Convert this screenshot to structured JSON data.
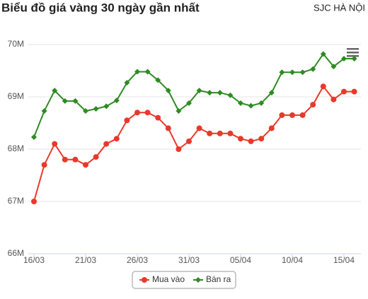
{
  "chart_data": {
    "type": "line",
    "title": "Biểu đồ giá vàng 30 ngày gần nhất",
    "subtitle": "SJC HÀ NỘI",
    "categories": [
      "16/03",
      null,
      null,
      null,
      null,
      "21/03",
      null,
      null,
      null,
      null,
      "26/03",
      null,
      null,
      null,
      null,
      "31/03",
      null,
      null,
      null,
      null,
      "05/04",
      null,
      null,
      null,
      null,
      "10/04",
      null,
      null,
      null,
      null,
      "15/04",
      null
    ],
    "ylim": [
      66,
      70
    ],
    "yticks": [
      {
        "value": 66,
        "label": "66M"
      },
      {
        "value": 67,
        "label": "67M"
      },
      {
        "value": 68,
        "label": "68M"
      },
      {
        "value": 69,
        "label": "69M"
      },
      {
        "value": 70,
        "label": "70M"
      }
    ],
    "grid": true,
    "series": [
      {
        "name": "Mua vào",
        "color": "#e8392b",
        "marker": "circle",
        "values": [
          67.0,
          67.7,
          68.1,
          67.8,
          67.8,
          67.7,
          67.85,
          68.1,
          68.2,
          68.55,
          68.7,
          68.7,
          68.6,
          68.4,
          68.0,
          68.15,
          68.4,
          68.3,
          68.3,
          68.3,
          68.2,
          68.15,
          68.2,
          68.4,
          68.65,
          68.65,
          68.65,
          68.85,
          69.2,
          68.95,
          69.1,
          69.1
        ]
      },
      {
        "name": "Bán ra",
        "color": "#2e8b22",
        "marker": "diamond",
        "values": [
          68.23,
          68.73,
          69.12,
          68.92,
          68.92,
          68.73,
          68.77,
          68.82,
          68.93,
          69.27,
          69.48,
          69.48,
          69.32,
          69.12,
          68.73,
          68.88,
          69.12,
          69.08,
          69.08,
          69.03,
          68.88,
          68.83,
          68.88,
          69.08,
          69.47,
          69.47,
          69.47,
          69.53,
          69.82,
          69.58,
          69.73,
          69.73
        ]
      }
    ]
  }
}
